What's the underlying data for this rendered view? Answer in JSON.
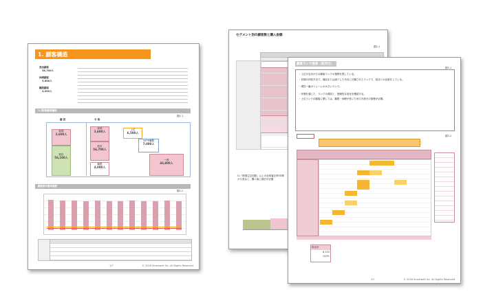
{
  "page1": {
    "title": "1. 顧客構造",
    "stats": [
      {
        "label": "流出顧客",
        "value": "36,700人"
      },
      {
        "label": "休眠顧客",
        "value": "5,600人"
      },
      {
        "label": "離脱顧客",
        "value": "4,000人"
      }
    ],
    "section1": "1) 期/動態現構造",
    "section2": "顧客数の基本推移",
    "col_left": "継 目",
    "col_right": "今 後",
    "boxes": [
      {
        "label": "新規",
        "value": "2,600人"
      },
      {
        "label": "既存",
        "value": "56,100人"
      },
      {
        "label": "新規",
        "value": "3,600人"
      },
      {
        "label": "既存",
        "value": "56,700人"
      },
      {
        "label": "離脱",
        "value": "4,000人"
      },
      {
        "label": "上位",
        "value": "6,500人"
      },
      {
        "label": "VIP予備群",
        "value": "7,000人"
      },
      {
        "label": "一般",
        "value": "46,800人"
      }
    ],
    "pagenum": "1/7",
    "copyright": "© 2016 Smartwell Inc. All Rights Reserved",
    "chart_ref": "図1-1",
    "chart_ref2": "図1-2"
  },
  "page2": {
    "title": "セグメント別の顧客数と購入金額",
    "fig": "図2-1",
    "note": "A)「新規注文回数」以上の全体客比率/利率から見ると、購入後に検討が必要",
    "sub": "その他"
  },
  "page3": {
    "title": "顧客ランク推移（前月比）",
    "fig": "図3-1",
    "fig2": "図3-2",
    "bullets": [
      "・上位の当月からの顧客ランクの推移を表している。",
      "・初期の判別方法で、増加または減少した今月に分類されたランクで、前月との比較をしている。",
      "・現在一番ボリュームの大きいランク。",
      "・年間を通じた、ランクの傾向と、長期的な変化を確認する。",
      "・上位ランクの顧客に関しては、離脱・休眠が多いため引き続きの施策が必要。"
    ],
    "pagenum": "3/7",
    "copyright": "© 2016 Smartwell Inc. All Rights Reserved",
    "summary_label": "総合計",
    "summary_vals": [
      "8,102",
      "100%"
    ]
  },
  "colors": {
    "accent_orange": "#f5a623",
    "title_orange": "#f7941d",
    "pink": "#e8a9b8",
    "green": "#c8dca8",
    "blue_band": "#5b8fd6",
    "yellow": "#f5d15b",
    "red_line": "#d9534f"
  }
}
